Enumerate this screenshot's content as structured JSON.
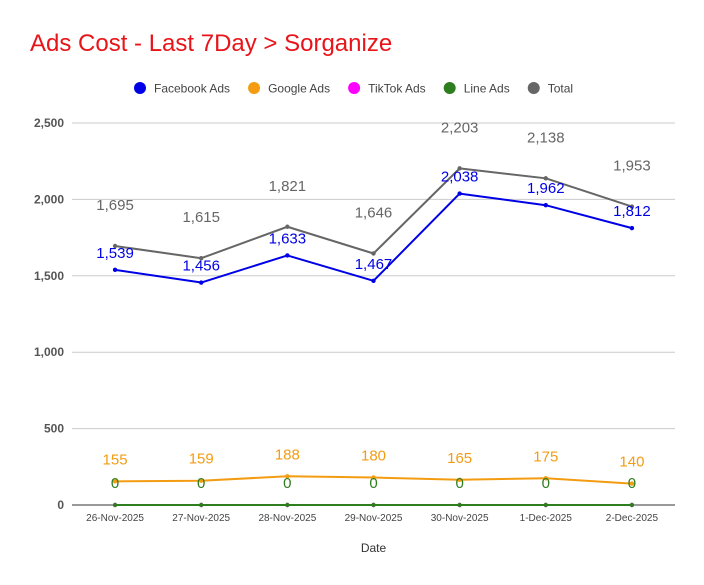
{
  "title": "Ads Cost - Last 7Day > Sorganize",
  "chart_data": {
    "type": "line",
    "title": "Ads Cost - Last 7Day > Sorganize",
    "xlabel": "Date",
    "ylabel": "",
    "ylim": [
      0,
      2500
    ],
    "yticks": [
      0,
      500,
      1000,
      1500,
      2000,
      2500
    ],
    "ytick_labels": [
      "0",
      "500",
      "1,000",
      "1,500",
      "2,000",
      "2,500"
    ],
    "grid": true,
    "legend_position": "top",
    "categories": [
      "26-Nov-2025",
      "27-Nov-2025",
      "28-Nov-2025",
      "29-Nov-2025",
      "30-Nov-2025",
      "1-Dec-2025",
      "2-Dec-2025"
    ],
    "series": [
      {
        "name": "Facebook Ads",
        "color": "#0000e6",
        "values": [
          1539,
          1456,
          1633,
          1467,
          2038,
          1962,
          1812
        ],
        "labels": [
          "1,539",
          "1,456",
          "1,633",
          "1,467",
          "2,038",
          "1,962",
          "1,812"
        ]
      },
      {
        "name": "Google Ads",
        "color": "#f39c12",
        "values": [
          155,
          159,
          188,
          180,
          165,
          175,
          140
        ],
        "labels": [
          "155",
          "159",
          "188",
          "180",
          "165",
          "175",
          "140"
        ]
      },
      {
        "name": "TikTok Ads",
        "color": "#ff00ff",
        "values": [
          0,
          0,
          0,
          0,
          0,
          0,
          0
        ],
        "labels": []
      },
      {
        "name": "Line Ads",
        "color": "#2e7d1f",
        "values": [
          0,
          0,
          0,
          0,
          0,
          0,
          0
        ],
        "labels": [
          "0",
          "0",
          "0",
          "0",
          "0",
          "0",
          "0"
        ]
      },
      {
        "name": "Total",
        "color": "#666666",
        "values": [
          1695,
          1615,
          1821,
          1646,
          2203,
          2138,
          1953
        ],
        "labels": [
          "1,695",
          "1,615",
          "1,821",
          "1,646",
          "2,203",
          "2,138",
          "1,953"
        ]
      }
    ]
  }
}
